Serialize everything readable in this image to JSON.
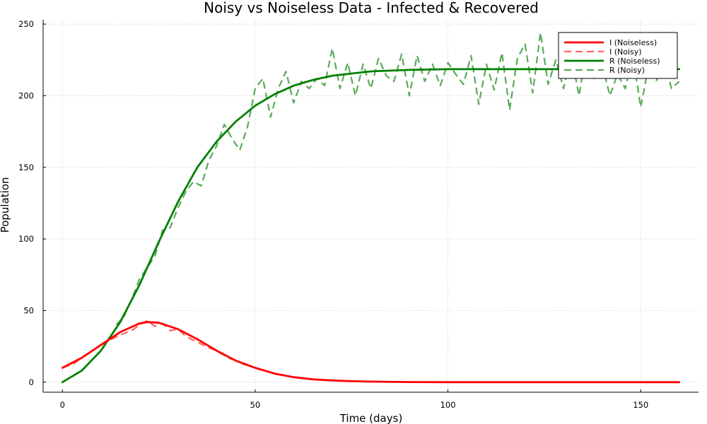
{
  "chart_data": {
    "type": "line",
    "title": "Noisy vs Noiseless Data - Infected & Recovered",
    "xlabel": "Time (days)",
    "ylabel": "Population",
    "xlim": [
      -5,
      165
    ],
    "ylim": [
      -7,
      253
    ],
    "xticks": [
      0,
      50,
      100,
      150
    ],
    "yticks": [
      0,
      50,
      100,
      150,
      200,
      250
    ],
    "grid": true,
    "legend_position": "top-right",
    "series": [
      {
        "name": "I (Noiseless)",
        "color": "#ff0000",
        "style": "solid",
        "x": [
          0,
          5,
          10,
          15,
          20,
          22,
          25,
          30,
          35,
          40,
          45,
          50,
          55,
          60,
          65,
          70,
          75,
          80,
          90,
          100,
          120,
          140,
          160
        ],
        "y": [
          10,
          17,
          26,
          35,
          41,
          42,
          41.5,
          37,
          30,
          22,
          15,
          10,
          6,
          3.5,
          2,
          1.2,
          0.7,
          0.4,
          0.1,
          0,
          0,
          0,
          0
        ]
      },
      {
        "name": "I (Noisy)",
        "color": "#ff6666",
        "style": "dashed",
        "x": [
          0,
          3,
          6,
          9,
          12,
          15,
          18,
          20,
          22,
          24,
          26,
          28,
          30,
          32,
          35,
          38,
          40,
          43,
          46,
          48
        ],
        "y": [
          10,
          13,
          19,
          24,
          29,
          33,
          36,
          40,
          43,
          39,
          41,
          36,
          37,
          32,
          28,
          24,
          22,
          17,
          14,
          11
        ]
      },
      {
        "name": "R (Noiseless)",
        "color": "#008000",
        "style": "solid",
        "x": [
          0,
          5,
          10,
          15,
          20,
          25,
          30,
          35,
          40,
          45,
          50,
          55,
          60,
          65,
          70,
          80,
          90,
          100,
          120,
          140,
          160
        ],
        "y": [
          0,
          8,
          22,
          42,
          68,
          98,
          126,
          150,
          168,
          182,
          193,
          201,
          207,
          211,
          214,
          217,
          218,
          218.5,
          218.5,
          218.5,
          218.5
        ]
      },
      {
        "name": "R (Noisy)",
        "color": "#5aaa5a",
        "style": "dashed",
        "x": [
          14,
          16,
          18,
          20,
          22,
          24,
          26,
          28,
          30,
          32,
          34,
          36,
          38,
          40,
          42,
          44,
          46,
          48,
          50,
          52,
          54,
          56,
          58,
          60,
          62,
          64,
          66,
          68,
          70,
          72,
          74,
          76,
          78,
          80,
          82,
          84,
          86,
          88,
          90,
          92,
          94,
          96,
          98,
          100,
          102,
          104,
          106,
          108,
          110,
          112,
          114,
          116,
          118,
          120,
          122,
          124,
          126,
          128,
          130,
          132,
          134,
          136,
          138,
          140,
          142,
          144,
          146,
          148,
          150,
          152,
          154,
          156,
          158,
          160
        ],
        "y": [
          40,
          46,
          58,
          72,
          80,
          88,
          106,
          108,
          122,
          133,
          140,
          137,
          155,
          165,
          180,
          170,
          162,
          178,
          205,
          212,
          185,
          205,
          217,
          195,
          210,
          205,
          212,
          207,
          233,
          205,
          223,
          200,
          222,
          205,
          226,
          214,
          210,
          229,
          200,
          228,
          210,
          222,
          207,
          223,
          215,
          208,
          228,
          194,
          222,
          204,
          230,
          190,
          226,
          236,
          202,
          244,
          208,
          225,
          205,
          228,
          200,
          232,
          212,
          222,
          200,
          215,
          205,
          228,
          192,
          220,
          210,
          225,
          205,
          210
        ]
      }
    ]
  }
}
